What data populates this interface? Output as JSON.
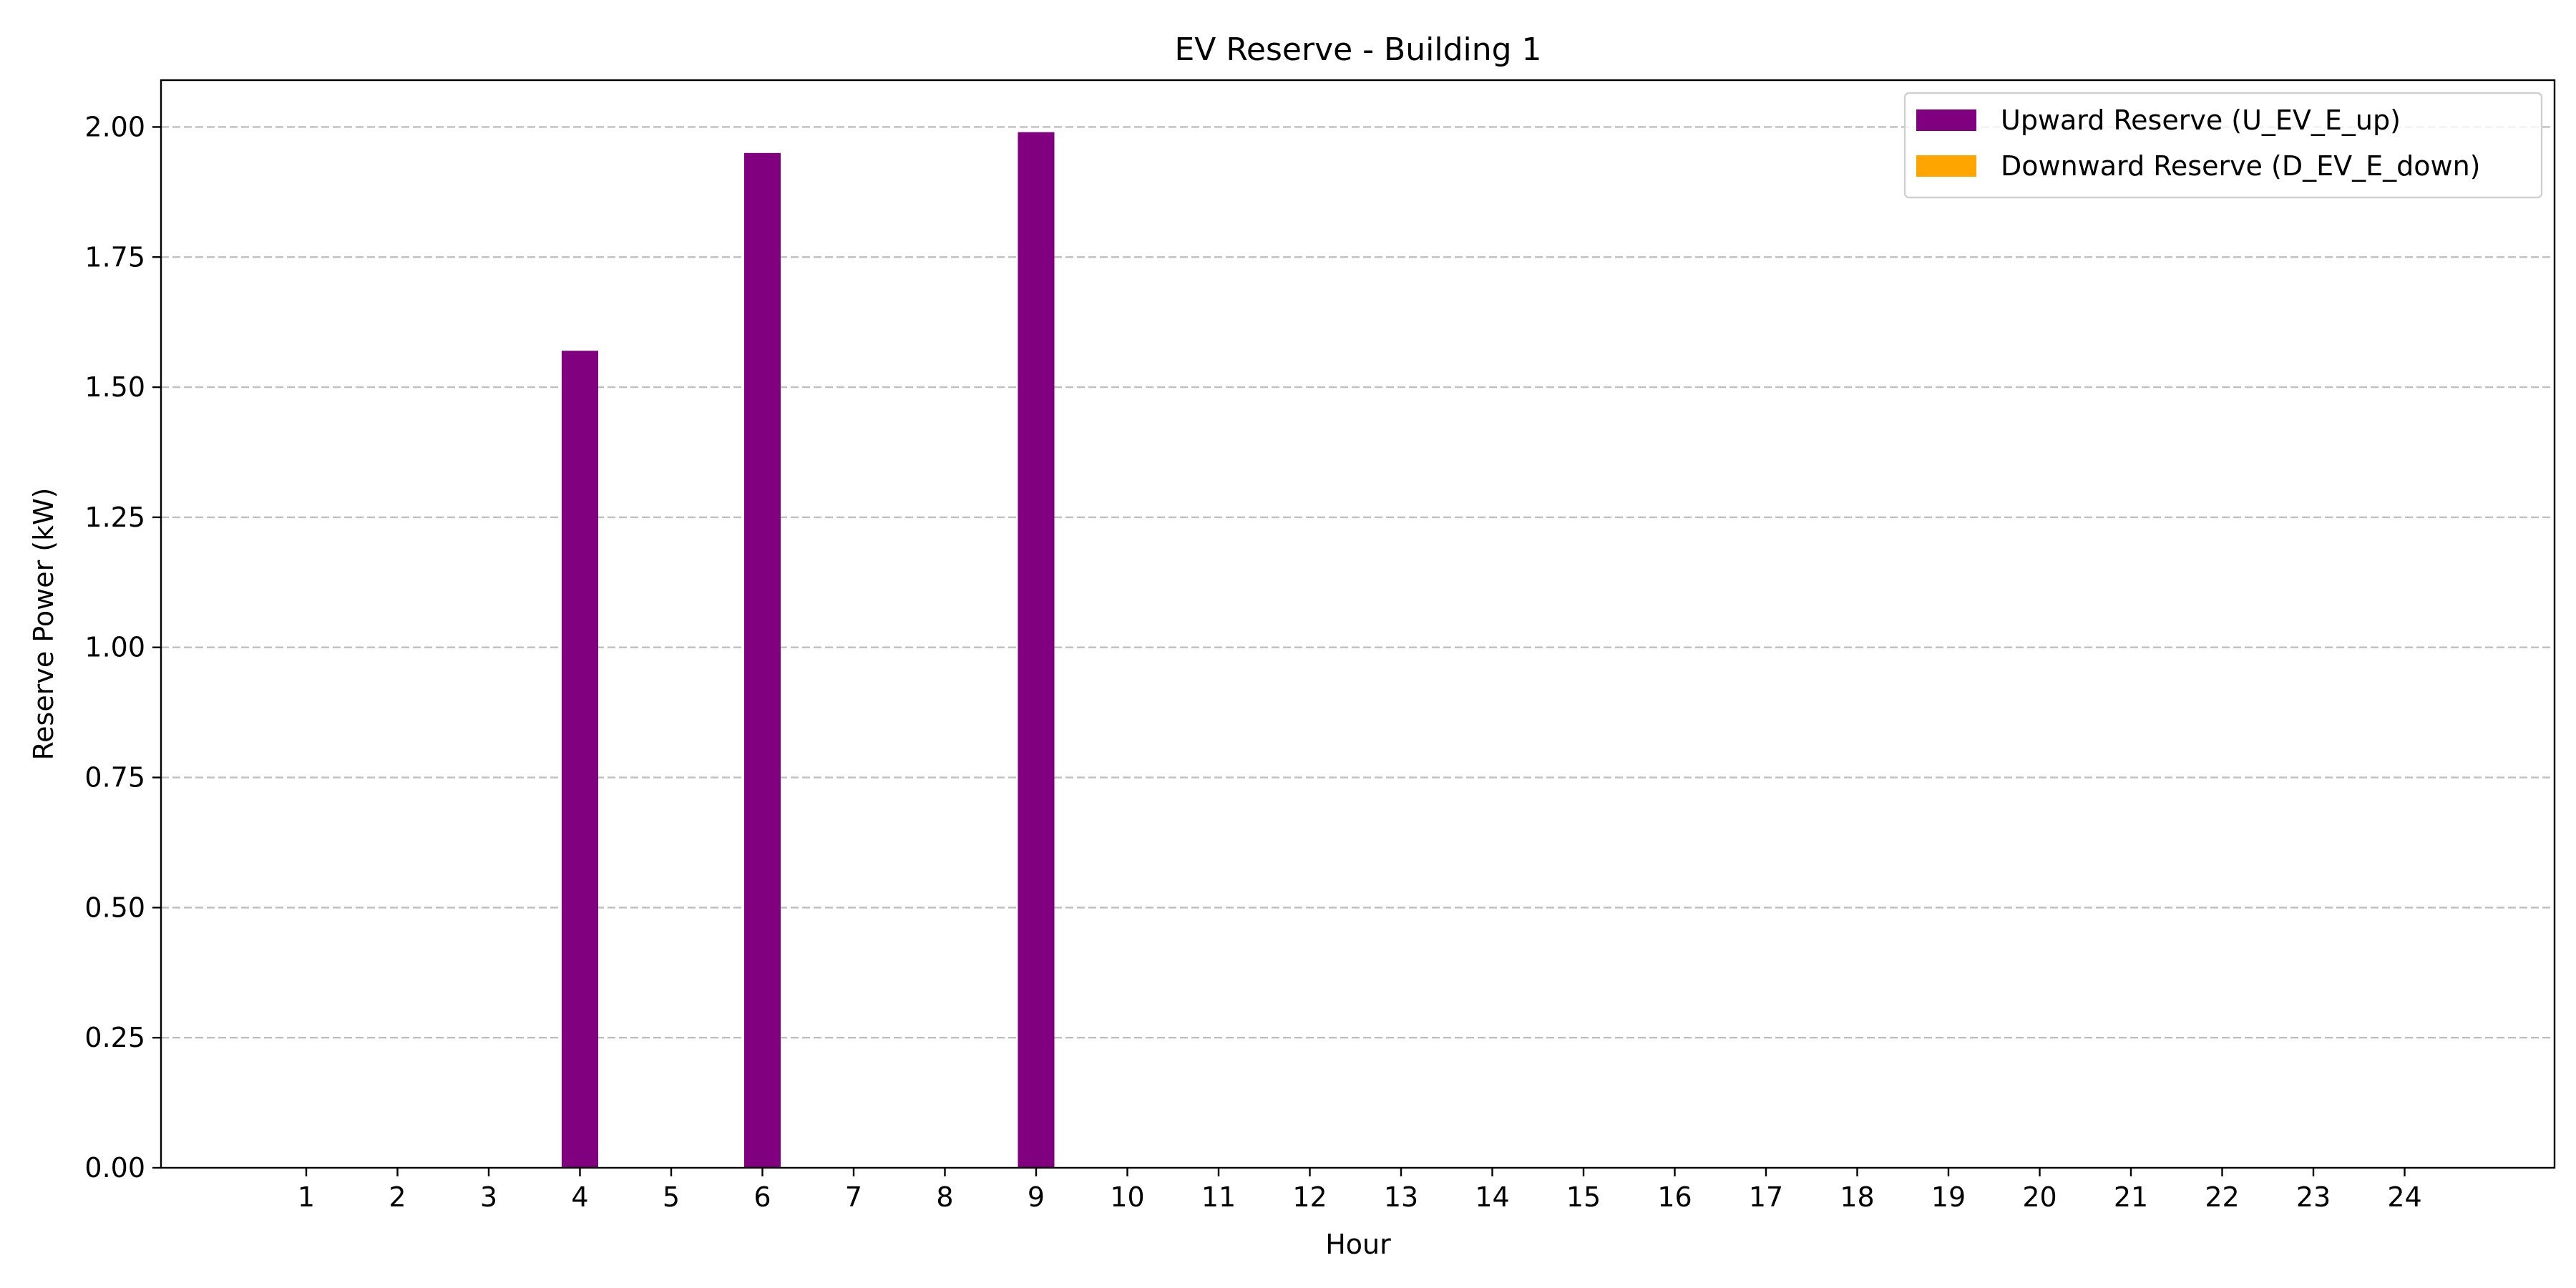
{
  "chart_data": {
    "type": "bar",
    "title": "EV Reserve - Building 1",
    "xlabel": "Hour",
    "ylabel": "Reserve Power (kW)",
    "categories": [
      "1",
      "2",
      "3",
      "4",
      "5",
      "6",
      "7",
      "8",
      "9",
      "10",
      "11",
      "12",
      "13",
      "14",
      "15",
      "16",
      "17",
      "18",
      "19",
      "20",
      "21",
      "22",
      "23",
      "24"
    ],
    "series": [
      {
        "name": "Upward Reserve (U_EV_E_up)",
        "color": "#800080",
        "values": [
          0,
          0,
          0,
          1.57,
          0,
          1.95,
          0,
          0,
          1.99,
          0,
          0,
          0,
          0,
          0,
          0,
          0,
          0,
          0,
          0,
          0,
          0,
          0,
          0,
          0
        ]
      },
      {
        "name": "Downward Reserve (D_EV_E_down)",
        "color": "#FFA500",
        "values": [
          0,
          0,
          0,
          0,
          0,
          0,
          0,
          0,
          0,
          0,
          0,
          0,
          0,
          0,
          0,
          0,
          0,
          0,
          0,
          0,
          0,
          0,
          0,
          0
        ]
      }
    ],
    "ylim": [
      0,
      2.09
    ],
    "yticks": [
      "0.00",
      "0.25",
      "0.50",
      "0.75",
      "1.00",
      "1.25",
      "1.50",
      "1.75",
      "2.00"
    ],
    "grid": "y-dashed",
    "legend": "top-right"
  }
}
